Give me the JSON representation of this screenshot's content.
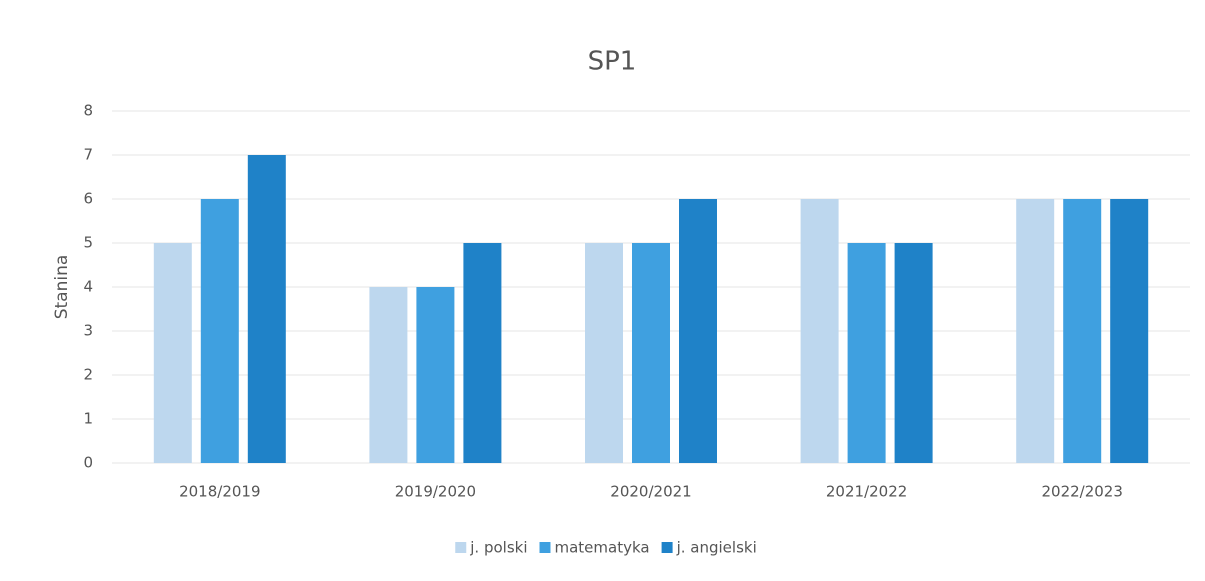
{
  "chart_data": {
    "type": "bar",
    "title": "SP1",
    "y_label": "Stanina",
    "categories": [
      "2018/2019",
      "2019/2020",
      "2020/2021",
      "2021/2022",
      "2022/2023"
    ],
    "series": [
      {
        "name": "j. polski",
        "color": "#bdd7ee",
        "values": [
          5,
          4,
          5,
          6,
          6
        ]
      },
      {
        "name": "matematyka",
        "color": "#3fa0e0",
        "values": [
          6,
          4,
          5,
          5,
          6
        ]
      },
      {
        "name": "j. angielski",
        "color": "#1f82c8",
        "values": [
          7,
          5,
          6,
          5,
          6
        ]
      }
    ],
    "ylim": [
      0,
      8
    ],
    "yticks": [
      0,
      1,
      2,
      3,
      4,
      5,
      6,
      7,
      8
    ],
    "grid": true,
    "legend": "bottom"
  }
}
